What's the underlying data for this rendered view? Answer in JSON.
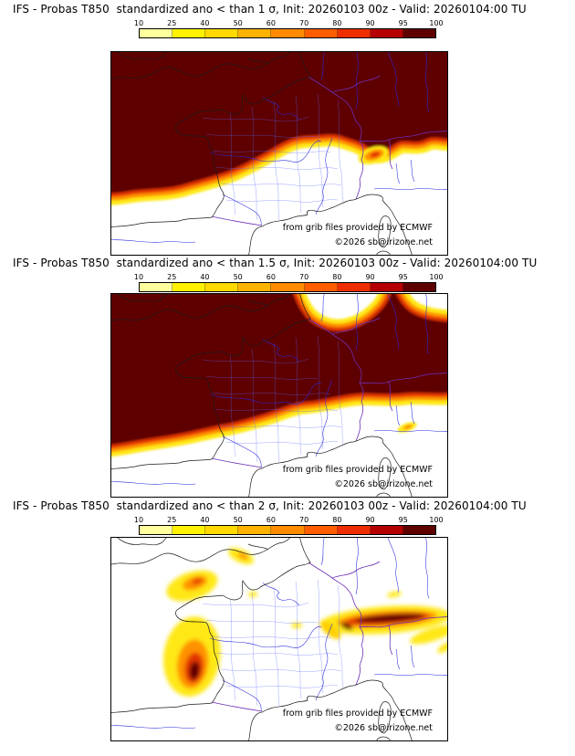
{
  "colorbar": {
    "ticks": [
      "10",
      "25",
      "40",
      "50",
      "60",
      "70",
      "80",
      "90",
      "95",
      "100"
    ],
    "colors": [
      "#ffff9e",
      "#fff200",
      "#ffd900",
      "#ffb300",
      "#ff8c00",
      "#ff5e00",
      "#ee2e00",
      "#b40000",
      "#5e0000"
    ]
  },
  "panels": [
    {
      "id": "lt-1-sigma",
      "title": "IFS - Probas T850  standardized ano < than 1 σ, Init: 20260103 00z - Valid: 20260104:00 TU",
      "credits": {
        "line1": "from grib files provided by ECMWF",
        "line2": "©2026 sb@irizone.net"
      }
    },
    {
      "id": "lt-1.5-sigma",
      "title": "IFS - Probas T850  standardized ano < than 1.5 σ, Init: 20260103 00z - Valid: 20260104:00 TU",
      "credits": {
        "line1": "from grib files provided by ECMWF",
        "line2": "©2026 sb@irizone.net"
      }
    },
    {
      "id": "lt-2-sigma",
      "title": "IFS - Probas T850  standardized ano < than 2 σ, Init: 20260103 00z - Valid: 20260104:00 TU",
      "credits": {
        "line1": "from grib files provided by ECMWF",
        "line2": "©2026 sb@irizone.net"
      }
    }
  ],
  "map_style": {
    "coastline_color": "#1a1a1a",
    "national_border_color": "#6b2fb5",
    "river_color": "#2929dd",
    "department_border_color": "#5766ff",
    "prob_100_color": "#5e0000",
    "prob_80_color": "#e23400",
    "prob_60_color": "#ff9100",
    "prob_20_color": "#ffe818"
  }
}
